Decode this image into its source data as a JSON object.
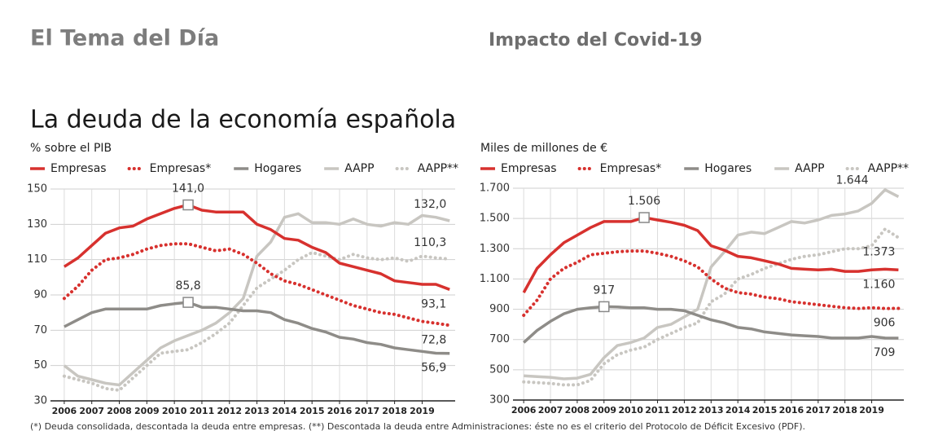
{
  "header": {
    "section": "El Tema del Día",
    "topic": "Impacto del Covid-19"
  },
  "title": "La deuda de la economía española",
  "footnote": "(*) Deuda consolidada, descontada la deuda entre empresas. (**) Descontada la deuda entre Administraciones: éste no es el criterio del Protocolo de Déficit Excesivo (PDF).",
  "chart_data": [
    {
      "type": "line",
      "y_label": "% sobre el PIB",
      "x": [
        2006,
        2006.5,
        2007,
        2007.5,
        2008,
        2008.5,
        2009,
        2009.5,
        2010,
        2010.5,
        2011,
        2011.5,
        2012,
        2012.5,
        2013,
        2013.5,
        2014,
        2014.5,
        2015,
        2015.5,
        2016,
        2016.5,
        2017,
        2017.5,
        2018,
        2018.5,
        2019,
        2019.5,
        2020
      ],
      "xlim": [
        2005.5,
        2020.2
      ],
      "xticks": [
        2006,
        2007,
        2008,
        2009,
        2010,
        2011,
        2012,
        2013,
        2014,
        2015,
        2016,
        2017,
        2018,
        2019
      ],
      "ylim": [
        30,
        150
      ],
      "yticks": [
        30,
        50,
        70,
        90,
        110,
        130,
        150
      ],
      "grid": true,
      "series": [
        {
          "name": "Empresas",
          "color": "#d7312e",
          "style": "solid",
          "values": [
            106,
            111,
            118,
            125,
            128,
            129,
            133,
            136,
            139,
            141,
            138,
            137,
            137,
            137,
            130,
            127,
            122,
            121,
            117,
            114,
            108,
            106,
            104,
            102,
            98,
            97,
            96,
            96,
            93.1
          ]
        },
        {
          "name": "Empresas*",
          "color": "#d7312e",
          "style": "dotted",
          "values": [
            88,
            95,
            104,
            110,
            111,
            113,
            116,
            118,
            119,
            119,
            117,
            115,
            116,
            113,
            108,
            102,
            98,
            96,
            93,
            90,
            87,
            84,
            82,
            80,
            79,
            77,
            75,
            74,
            72.8
          ]
        },
        {
          "name": "Hogares",
          "color": "#8e8c88",
          "style": "solid",
          "values": [
            72,
            76,
            80,
            82,
            82,
            82,
            82,
            84,
            85,
            85.8,
            83,
            83,
            82,
            81,
            81,
            80,
            76,
            74,
            71,
            69,
            66,
            65,
            63,
            62,
            60,
            59,
            58,
            57,
            56.9
          ]
        },
        {
          "name": "AAPP",
          "color": "#c8c6c1",
          "style": "solid",
          "values": [
            50,
            44,
            42,
            40,
            39,
            46,
            53,
            60,
            64,
            67,
            70,
            74,
            80,
            88,
            112,
            120,
            134,
            136,
            131,
            131,
            130,
            133,
            130,
            129,
            131,
            130,
            135,
            134,
            132
          ]
        },
        {
          "name": "AAPP**",
          "color": "#c8c6c1",
          "style": "dotted",
          "values": [
            44,
            42,
            40,
            37,
            36,
            43,
            50,
            57,
            58,
            59,
            63,
            68,
            74,
            84,
            94,
            99,
            104,
            110,
            114,
            112,
            110,
            113,
            111,
            110,
            111,
            109,
            112,
            111,
            110.3
          ]
        }
      ],
      "annotations": [
        {
          "text": "141,0",
          "x": 2010.5,
          "y": 141,
          "marker": "square",
          "position": "above"
        },
        {
          "text": "85,8",
          "x": 2010.5,
          "y": 85.8,
          "marker": "square",
          "position": "above"
        },
        {
          "text": "132,0",
          "x": 2020,
          "y": 132,
          "position": "above"
        },
        {
          "text": "110,3",
          "x": 2020,
          "y": 110.3,
          "position": "above"
        },
        {
          "text": "93,1",
          "x": 2020,
          "y": 93.1,
          "position": "below"
        },
        {
          "text": "72,8",
          "x": 2020,
          "y": 72.8,
          "position": "below"
        },
        {
          "text": "56,9",
          "x": 2020,
          "y": 56.9,
          "position": "below"
        }
      ]
    },
    {
      "type": "line",
      "y_label": "Miles de millones de €",
      "x": [
        2006,
        2006.5,
        2007,
        2007.5,
        2008,
        2008.5,
        2009,
        2009.5,
        2010,
        2010.5,
        2011,
        2011.5,
        2012,
        2012.5,
        2013,
        2013.5,
        2014,
        2014.5,
        2015,
        2015.5,
        2016,
        2016.5,
        2017,
        2017.5,
        2018,
        2018.5,
        2019,
        2019.5,
        2020
      ],
      "xlim": [
        2005.6,
        2020.2
      ],
      "xticks": [
        2006,
        2007,
        2008,
        2009,
        2010,
        2011,
        2012,
        2013,
        2014,
        2015,
        2016,
        2017,
        2018,
        2019
      ],
      "ylim": [
        300,
        1700
      ],
      "yticks": [
        300,
        500,
        700,
        900,
        {
          "value": 1100,
          "label": "1.100"
        },
        {
          "value": 1300,
          "label": "1.300"
        },
        {
          "value": 1500,
          "label": "1.500"
        },
        {
          "value": 1700,
          "label": "1.700"
        }
      ],
      "grid": true,
      "series": [
        {
          "name": "Empresas",
          "color": "#d7312e",
          "style": "solid",
          "values": [
            1010,
            1170,
            1260,
            1340,
            1390,
            1440,
            1480,
            1480,
            1480,
            1506,
            1490,
            1475,
            1455,
            1420,
            1320,
            1290,
            1250,
            1240,
            1220,
            1200,
            1170,
            1165,
            1160,
            1165,
            1150,
            1150,
            1160,
            1165,
            1160
          ]
        },
        {
          "name": "Empresas*",
          "color": "#d7312e",
          "style": "dotted",
          "values": [
            860,
            960,
            1100,
            1170,
            1210,
            1260,
            1270,
            1280,
            1285,
            1285,
            1270,
            1250,
            1220,
            1180,
            1100,
            1040,
            1010,
            1000,
            980,
            970,
            950,
            940,
            930,
            920,
            910,
            905,
            910,
            905,
            906
          ]
        },
        {
          "name": "Hogares",
          "color": "#8e8c88",
          "style": "solid",
          "values": [
            680,
            760,
            820,
            870,
            900,
            910,
            917,
            915,
            910,
            910,
            900,
            900,
            890,
            860,
            830,
            810,
            780,
            770,
            750,
            740,
            730,
            725,
            720,
            710,
            710,
            710,
            720,
            710,
            709
          ]
        },
        {
          "name": "AAPP",
          "color": "#c8c6c1",
          "style": "solid",
          "values": [
            460,
            455,
            450,
            440,
            445,
            470,
            580,
            660,
            680,
            710,
            780,
            800,
            850,
            900,
            1180,
            1280,
            1390,
            1410,
            1400,
            1440,
            1480,
            1470,
            1490,
            1520,
            1530,
            1550,
            1600,
            1690,
            1644
          ]
        },
        {
          "name": "AAPP**",
          "color": "#c8c6c1",
          "style": "dotted",
          "values": [
            420,
            415,
            410,
            400,
            400,
            430,
            540,
            600,
            630,
            650,
            700,
            740,
            780,
            810,
            950,
            1000,
            1100,
            1130,
            1170,
            1200,
            1230,
            1250,
            1260,
            1280,
            1300,
            1300,
            1320,
            1430,
            1373
          ]
        }
      ],
      "annotations": [
        {
          "text": "1.506",
          "x": 2010.5,
          "y": 1506,
          "marker": "square",
          "position": "above"
        },
        {
          "text": "917",
          "x": 2009,
          "y": 917,
          "marker": "square",
          "position": "above"
        },
        {
          "text": "1.644",
          "x": 2019,
          "y": 1644,
          "position": "above"
        },
        {
          "text": "1.373",
          "x": 2020,
          "y": 1373,
          "position": "below"
        },
        {
          "text": "1.160",
          "x": 2020,
          "y": 1160,
          "position": "below"
        },
        {
          "text": "906",
          "x": 2020,
          "y": 906,
          "position": "below"
        },
        {
          "text": "709",
          "x": 2020,
          "y": 709,
          "position": "below"
        }
      ]
    }
  ]
}
